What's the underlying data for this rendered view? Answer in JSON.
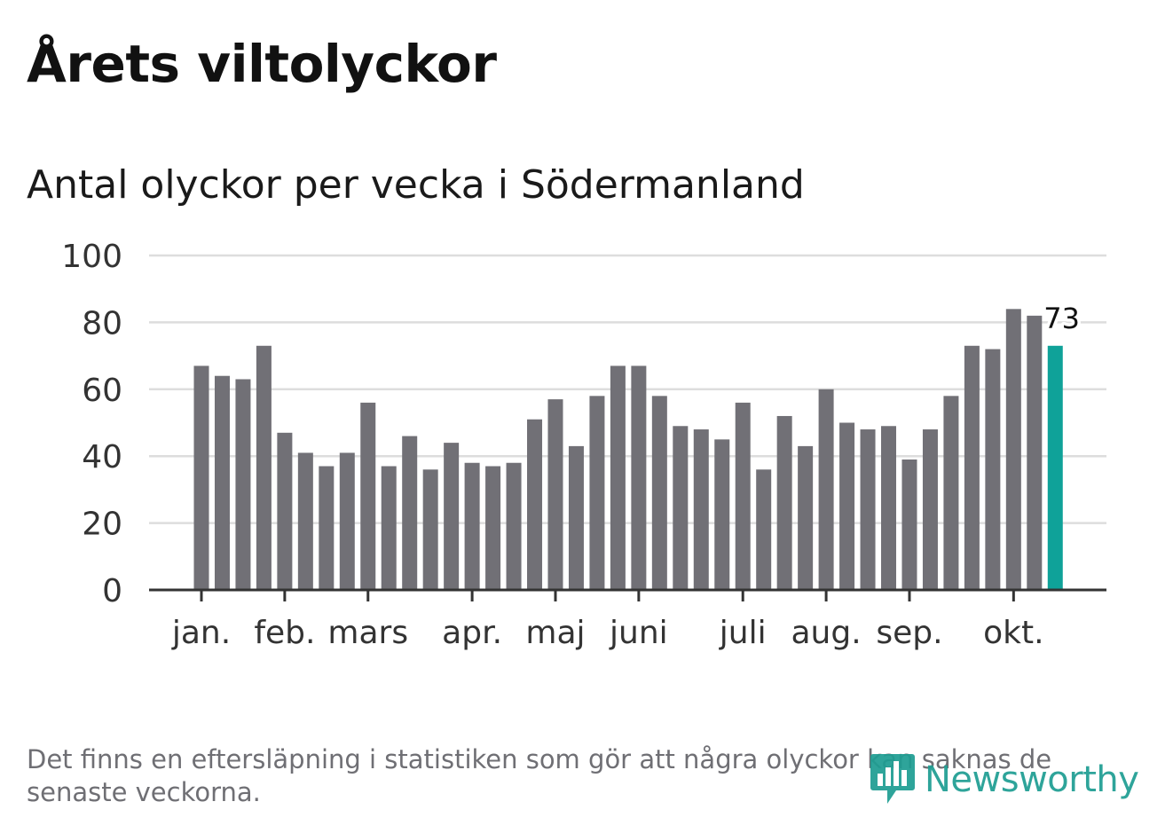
{
  "title": "Årets viltolyckor",
  "subtitle": "Antal olyckor per vecka i Södermanland",
  "footnote": "Det finns en eftersläpning i statistiken som gör att några olyckor kan saknas de senaste veckorna.",
  "brand": {
    "name": "Newsworthy",
    "icon": "bar-chart-speech-bubble-icon",
    "color": "#1f9e93"
  },
  "colors": {
    "bar": "#717076",
    "highlight": "#0fa299",
    "grid": "#dddddd",
    "axis": "#333333",
    "text": "#333333"
  },
  "chart_data": {
    "type": "bar",
    "title": "Antal olyckor per vecka i Södermanland",
    "xlabel": "",
    "ylabel": "",
    "ylim": [
      0,
      100
    ],
    "yticks": [
      0,
      20,
      40,
      60,
      80,
      100
    ],
    "grid": true,
    "weeks": [
      1,
      2,
      3,
      4,
      5,
      6,
      7,
      8,
      9,
      10,
      11,
      12,
      13,
      14,
      15,
      16,
      17,
      18,
      19,
      20,
      21,
      22,
      23,
      24,
      25,
      26,
      27,
      28,
      29,
      30,
      31,
      32,
      33,
      34,
      35,
      36,
      37,
      38,
      39,
      40,
      41,
      42
    ],
    "values": [
      67,
      64,
      63,
      73,
      47,
      41,
      37,
      41,
      56,
      37,
      46,
      36,
      44,
      38,
      37,
      38,
      51,
      57,
      43,
      58,
      67,
      67,
      58,
      49,
      48,
      45,
      56,
      36,
      52,
      43,
      60,
      50,
      48,
      49,
      39,
      48,
      58,
      73,
      72,
      84,
      82,
      73
    ],
    "month_labels": [
      {
        "label": "jan.",
        "week": 1
      },
      {
        "label": "feb.",
        "week": 5
      },
      {
        "label": "mars",
        "week": 9
      },
      {
        "label": "apr.",
        "week": 14
      },
      {
        "label": "maj",
        "week": 18
      },
      {
        "label": "juni",
        "week": 22
      },
      {
        "label": "juli",
        "week": 27
      },
      {
        "label": "aug.",
        "week": 31
      },
      {
        "label": "sep.",
        "week": 35
      },
      {
        "label": "okt.",
        "week": 40
      }
    ],
    "highlight": {
      "week": 42,
      "value": 73,
      "label": "73"
    }
  }
}
